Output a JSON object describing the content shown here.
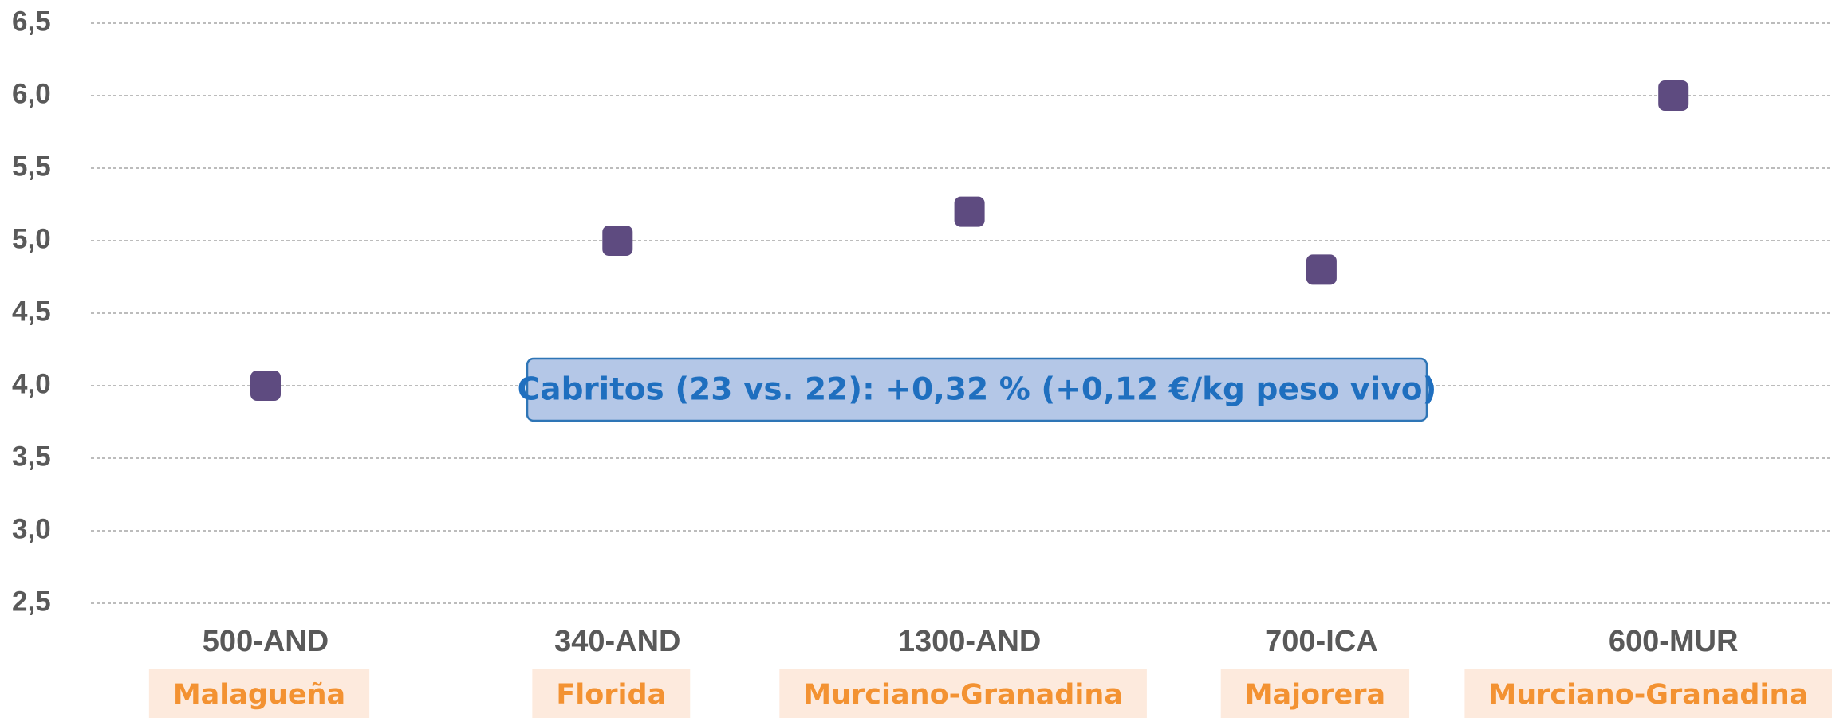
{
  "chart_data": {
    "type": "scatter",
    "categories": [
      "500-AND",
      "340-AND",
      "1300-AND",
      "700-ICA",
      "600-MUR"
    ],
    "subcategories": [
      "Malagueña",
      "Florida",
      "Murciano-Granadina",
      "Majorera",
      "Murciano-Granadina"
    ],
    "values": [
      4.0,
      5.0,
      5.2,
      4.8,
      6.0
    ],
    "color": "#5e4b80",
    "ylim": [
      2.5,
      6.5
    ],
    "yticks": [
      {
        "value": 2.5,
        "label": "2,5"
      },
      {
        "value": 3.0,
        "label": "3,0"
      },
      {
        "value": 3.5,
        "label": "3,5"
      },
      {
        "value": 4.0,
        "label": "4,0"
      },
      {
        "value": 4.5,
        "label": "4,5"
      },
      {
        "value": 5.0,
        "label": "5,0"
      },
      {
        "value": 5.5,
        "label": "5,5"
      },
      {
        "value": 6.0,
        "label": "6,0"
      },
      {
        "value": 6.5,
        "label": "6,5"
      }
    ],
    "grid": true,
    "annotation": "Cabritos (23 vs. 22): +0,32 % (+0,12 €/kg peso vivo)"
  }
}
